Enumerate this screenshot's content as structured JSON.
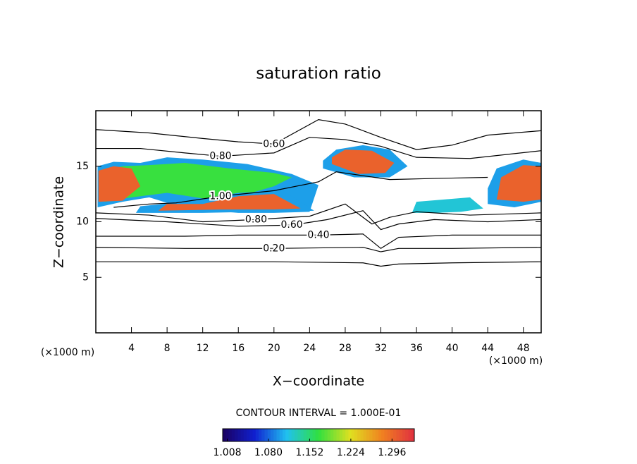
{
  "chart_data": {
    "type": "contour",
    "title": "saturation ratio",
    "xlabel": "X−coordinate",
    "ylabel": "Z−coordinate",
    "x_unit": "(×1000 m)",
    "y_unit": "(×1000 m)",
    "xlim": [
      0,
      50
    ],
    "ylim": [
      0,
      20
    ],
    "xticks": [
      4,
      8,
      12,
      16,
      20,
      24,
      28,
      32,
      36,
      40,
      44,
      48
    ],
    "yticks": [
      5,
      10,
      15
    ],
    "contour_interval": "CONTOUR INTERVAL = 1.000E-01",
    "colormap": [
      "#1a0060",
      "#1020d0",
      "#20c0f0",
      "#30e040",
      "#e0e020",
      "#f08020",
      "#e03040"
    ],
    "clim": [
      1.0,
      1.335
    ],
    "colorbar_ticks": [
      1.008,
      {
        "value": 1.08,
        "label": "1.080"
      },
      1.152,
      1.224,
      1.296
    ],
    "regions": [
      {
        "value": 1.1,
        "x": [
          0.2,
          3,
          6,
          10,
          16,
          20,
          24,
          25,
          22,
          17,
          12,
          8,
          5,
          2,
          0.2
        ],
        "y": [
          11.3,
          11.8,
          12.2,
          11.2,
          10.8,
          10.8,
          10.9,
          13.3,
          14.3,
          15.2,
          15.6,
          15.8,
          15.3,
          15.4,
          15.0
        ]
      },
      {
        "value": 1.17,
        "x": [
          1,
          4,
          8,
          12,
          17,
          20,
          22,
          20,
          15,
          10,
          6,
          3,
          1
        ],
        "y": [
          11.8,
          12.2,
          12.6,
          12.1,
          12.5,
          13.2,
          14.0,
          14.4,
          14.8,
          15.3,
          15.1,
          15.0,
          14.6
        ]
      },
      {
        "value": 1.3,
        "x": [
          0.3,
          3,
          5,
          4,
          2,
          0.3
        ],
        "y": [
          11.8,
          11.9,
          13.2,
          14.8,
          15.0,
          14.6
        ]
      },
      {
        "value": 1.1,
        "x": [
          4.5,
          12,
          18,
          22,
          24.5,
          21,
          16,
          10,
          5
        ],
        "y": [
          10.8,
          10.8,
          10.9,
          10.9,
          11.0,
          12.8,
          12.6,
          11.8,
          11.4
        ]
      },
      {
        "value": 1.3,
        "x": [
          7,
          14,
          20,
          23,
          20,
          16,
          12,
          8
        ],
        "y": [
          11.0,
          11.1,
          11.1,
          11.2,
          12.5,
          12.3,
          11.6,
          11.6
        ]
      },
      {
        "value": 1.1,
        "x": [
          25.5,
          29,
          33,
          35,
          33,
          30,
          27,
          25.5
        ],
        "y": [
          14.8,
          14.0,
          14.0,
          15.0,
          16.5,
          16.9,
          16.5,
          15.5
        ]
      },
      {
        "value": 1.3,
        "x": [
          26.5,
          29.5,
          32.5,
          33.5,
          31,
          28,
          26.5
        ],
        "y": [
          15.2,
          14.3,
          14.4,
          15.3,
          16.4,
          16.5,
          15.8
        ]
      },
      {
        "value": 1.12,
        "x": [
          35.5,
          38,
          41,
          43.5,
          42,
          39,
          36
        ],
        "y": [
          10.8,
          10.8,
          10.9,
          11.2,
          12.2,
          12.0,
          11.8
        ]
      },
      {
        "value": 1.1,
        "x": [
          44,
          47,
          50,
          50,
          48,
          45,
          44
        ],
        "y": [
          11.6,
          11.3,
          11.8,
          15.3,
          15.6,
          14.8,
          13.0
        ]
      },
      {
        "value": 1.3,
        "x": [
          45,
          48,
          50,
          50,
          48,
          45.5
        ],
        "y": [
          12.0,
          11.8,
          12.0,
          15.0,
          15.1,
          14.0
        ]
      }
    ],
    "contours": [
      {
        "level": 0.2,
        "label": "0.20",
        "x": [
          0,
          10,
          20,
          30,
          32,
          34,
          40,
          50
        ],
        "y": [
          7.7,
          7.6,
          7.6,
          7.7,
          7.3,
          7.6,
          7.6,
          7.7
        ]
      },
      {
        "level": 0.1,
        "x": [
          0,
          10,
          20,
          30,
          32,
          34,
          40,
          50
        ],
        "y": [
          6.4,
          6.4,
          6.4,
          6.3,
          6.0,
          6.2,
          6.3,
          6.4
        ]
      },
      {
        "level": 0.4,
        "label": "0.40",
        "x": [
          0,
          10,
          16,
          25,
          30,
          32,
          34,
          40,
          50
        ],
        "y": [
          8.7,
          8.7,
          8.8,
          8.8,
          8.9,
          7.6,
          8.6,
          8.8,
          8.8
        ]
      },
      {
        "level": 0.6,
        "label": "0.60",
        "x": [
          0,
          6,
          12,
          16,
          20,
          25,
          28,
          32,
          36,
          40,
          44,
          50
        ],
        "y": [
          18.3,
          18.0,
          17.5,
          17.2,
          17.0,
          19.2,
          18.8,
          17.6,
          16.5,
          16.9,
          17.8,
          18.2
        ]
      },
      {
        "level": 0.8,
        "label": "0.80",
        "x": [
          0,
          5,
          10,
          14,
          20,
          24,
          28,
          32,
          36,
          42,
          50
        ],
        "y": [
          16.6,
          16.6,
          16.2,
          15.9,
          16.2,
          17.6,
          17.4,
          16.8,
          15.8,
          15.7,
          16.4
        ]
      },
      {
        "level": 0.6,
        "label": "0.60",
        "x": [
          0,
          8,
          16,
          22,
          26,
          30,
          32,
          34,
          38,
          44,
          50
        ],
        "y": [
          10.3,
          10.0,
          9.6,
          9.7,
          10.2,
          11.0,
          9.3,
          9.8,
          10.2,
          10.0,
          10.2
        ]
      },
      {
        "level": 0.8,
        "label": "0.80",
        "x": [
          0,
          6,
          12,
          18,
          24,
          28,
          31,
          33,
          36,
          42,
          50
        ],
        "y": [
          10.8,
          10.6,
          10.0,
          10.2,
          10.5,
          11.6,
          9.8,
          10.4,
          10.9,
          10.6,
          10.8
        ]
      },
      {
        "level": 1.0,
        "label": "1.00",
        "x": [
          2,
          6,
          9,
          14,
          20,
          25,
          27,
          33,
          38,
          44
        ],
        "y": [
          11.3,
          11.6,
          11.7,
          12.3,
          12.8,
          13.6,
          14.5,
          13.8,
          13.9,
          14.0
        ]
      }
    ]
  }
}
